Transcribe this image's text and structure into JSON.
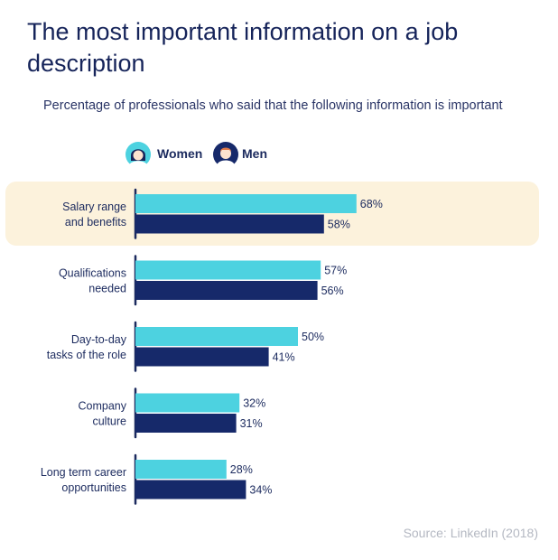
{
  "title": "The most important information on a job description",
  "subtitle": "Percentage of professionals who said that the following information is important",
  "legend": [
    {
      "label": "Women",
      "color": "#4dd2e0",
      "icon": "woman-avatar-icon"
    },
    {
      "label": "Men",
      "color": "#16296a",
      "icon": "man-avatar-icon"
    }
  ],
  "source": "Source: LinkedIn (2018)",
  "chart_data": {
    "type": "bar",
    "orientation": "horizontal",
    "categories": [
      [
        "Salary range",
        "and benefits"
      ],
      [
        "Qualifications",
        "needed"
      ],
      [
        "Day-to-day",
        "tasks of the role"
      ],
      [
        "Company",
        "culture"
      ],
      [
        "Long term career",
        "opportunities"
      ]
    ],
    "series": [
      {
        "name": "Women",
        "color": "#4dd2e0",
        "values": [
          68,
          57,
          50,
          32,
          28
        ]
      },
      {
        "name": "Men",
        "color": "#16296a",
        "values": [
          58,
          56,
          41,
          31,
          34
        ]
      }
    ],
    "value_labels": [
      [
        "68%",
        "57%",
        "50%",
        "32%",
        "28%"
      ],
      [
        "58%",
        "56%",
        "41%",
        "31%",
        "34%"
      ]
    ],
    "highlighted_category": "Salary range and benefits",
    "xlim": [
      0,
      100
    ],
    "grid": false
  }
}
